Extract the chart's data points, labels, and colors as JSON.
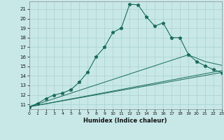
{
  "title": "",
  "xlabel": "Humidex (Indice chaleur)",
  "bg_color": "#c8e8e8",
  "line_color": "#1a6b5a",
  "grid_color": "#a8d0d0",
  "xlim": [
    0,
    23
  ],
  "ylim": [
    10.5,
    21.8
  ],
  "xticks": [
    0,
    1,
    2,
    3,
    4,
    5,
    6,
    7,
    8,
    9,
    10,
    11,
    12,
    13,
    14,
    15,
    16,
    17,
    18,
    19,
    20,
    21,
    22,
    23
  ],
  "yticks": [
    11,
    12,
    13,
    14,
    15,
    16,
    17,
    18,
    19,
    20,
    21
  ],
  "line1_x": [
    0,
    1,
    2,
    3,
    4,
    5,
    6,
    7,
    8,
    9,
    10,
    11,
    12,
    13,
    14,
    15,
    16,
    17,
    18,
    19,
    20,
    21,
    22,
    23
  ],
  "line1_y": [
    10.75,
    11.1,
    11.6,
    12.0,
    12.2,
    12.55,
    13.35,
    14.4,
    16.0,
    17.0,
    18.55,
    19.0,
    21.5,
    21.45,
    20.2,
    19.2,
    19.55,
    18.0,
    18.0,
    16.25,
    15.5,
    15.05,
    14.65,
    14.35
  ],
  "line2_x": [
    0,
    23
  ],
  "line2_y": [
    10.75,
    14.35
  ],
  "line3_x": [
    0,
    23
  ],
  "line3_y": [
    10.75,
    14.55
  ],
  "line4_x": [
    0,
    19,
    21,
    23
  ],
  "line4_y": [
    10.75,
    16.2,
    15.5,
    15.1
  ]
}
